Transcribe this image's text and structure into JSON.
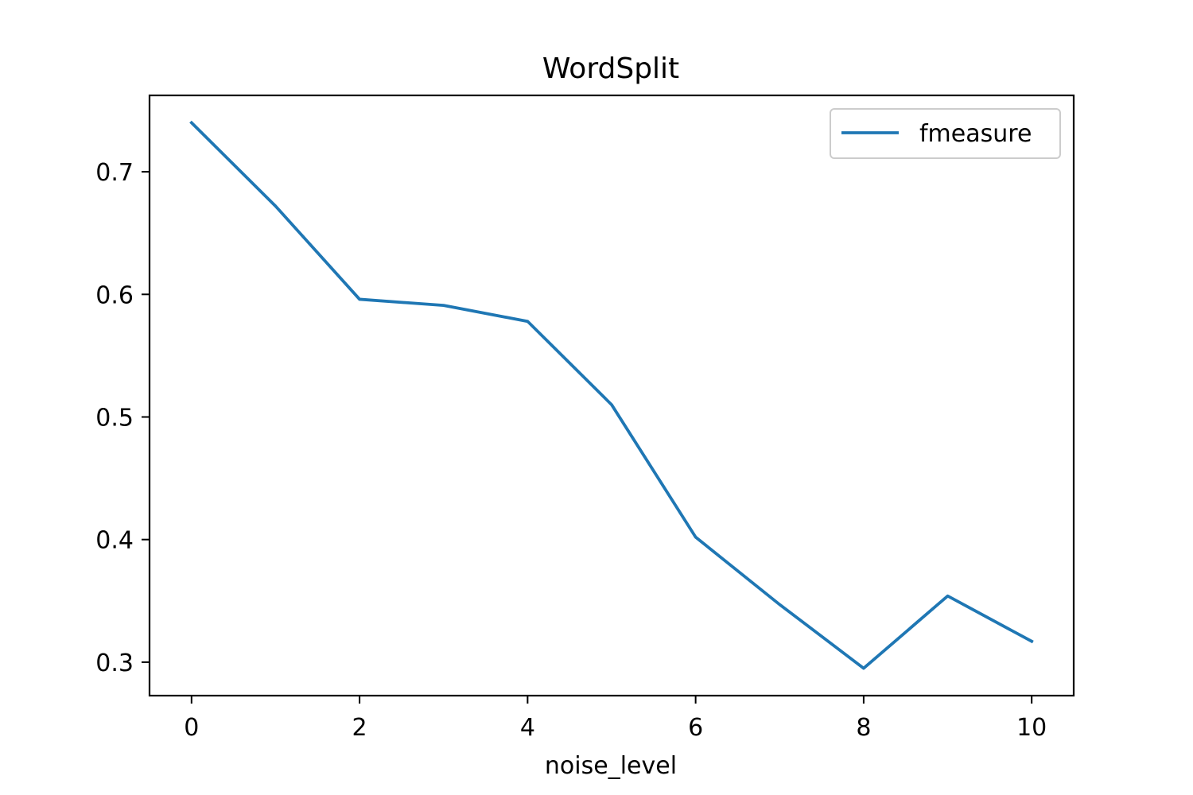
{
  "chart_data": {
    "type": "line",
    "title": "WordSplit",
    "xlabel": "noise_level",
    "ylabel": "",
    "x": [
      0,
      1,
      2,
      3,
      4,
      5,
      6,
      7,
      8,
      9,
      10
    ],
    "series": [
      {
        "name": "fmeasure",
        "color": "#1f77b4",
        "values": [
          0.74,
          0.672,
          0.596,
          0.591,
          0.578,
          0.51,
          0.402,
          0.347,
          0.295,
          0.354,
          0.317
        ]
      }
    ],
    "xlim": [
      -0.5,
      10.5
    ],
    "ylim": [
      0.2727,
      0.7623
    ],
    "xticks": [
      0,
      2,
      4,
      6,
      8,
      10
    ],
    "yticks": [
      0.3,
      0.4,
      0.5,
      0.6,
      0.7
    ],
    "xtick_labels": [
      "0",
      "2",
      "4",
      "6",
      "8",
      "10"
    ],
    "ytick_labels": [
      "0.3",
      "0.4",
      "0.5",
      "0.6",
      "0.7"
    ],
    "grid": false,
    "legend_position": "top-right"
  }
}
